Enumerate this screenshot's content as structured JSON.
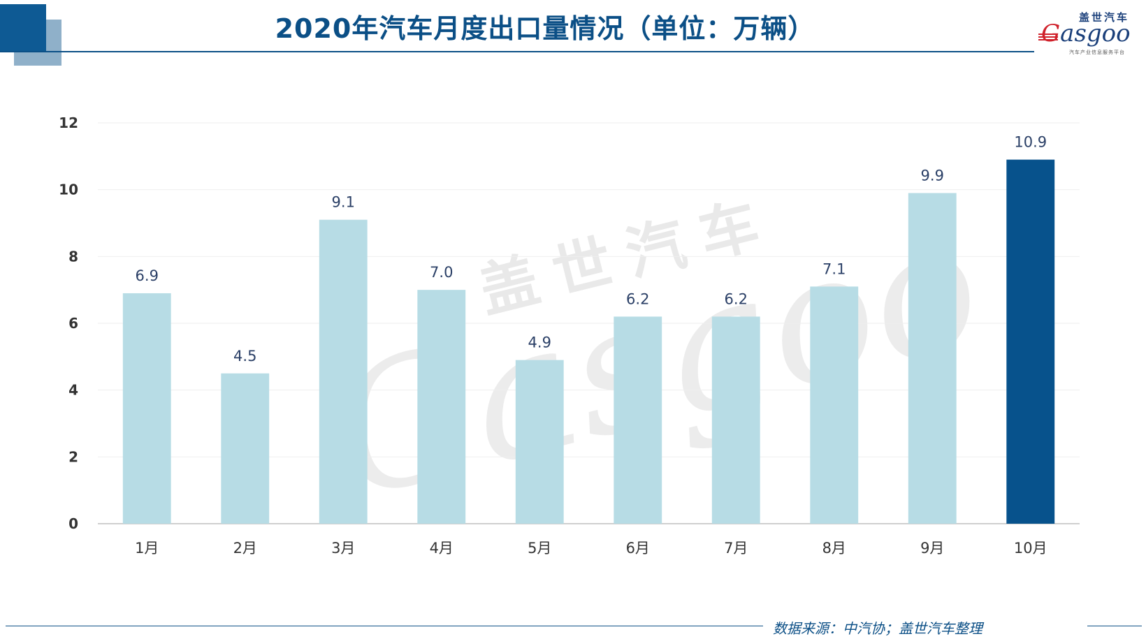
{
  "page": {
    "title": "2020年汽车月度出口量情况（单位：万辆）",
    "source": "数据来源：中汽协；盖世汽车整理",
    "logo": {
      "cn": "盖世汽车",
      "en_g": "G",
      "en_rest": "asgoo",
      "sub": "汽车产业信息服务平台"
    },
    "watermark": {
      "cn": "盖世汽车",
      "en": "Gasgoo"
    }
  },
  "colors": {
    "title": "#0b4f86",
    "bar": "#b7dce5",
    "highlight_bar": "#07528c",
    "axis_text": "#333333",
    "value_label": "#2a3f66",
    "grid": "#eeeeee"
  },
  "chart_data": {
    "type": "bar",
    "categories": [
      "1月",
      "2月",
      "3月",
      "4月",
      "5月",
      "6月",
      "7月",
      "8月",
      "9月",
      "10月"
    ],
    "values": [
      6.9,
      4.5,
      9.1,
      7.0,
      4.9,
      6.2,
      6.2,
      7.1,
      9.9,
      10.9
    ],
    "value_labels": [
      "6.9",
      "4.5",
      "9.1",
      "7.0",
      "4.9",
      "6.2",
      "6.2",
      "7.1",
      "9.9",
      "10.9"
    ],
    "highlight_index": 9,
    "ylim": [
      0,
      12
    ],
    "yticks": [
      0,
      2,
      4,
      6,
      8,
      10,
      12
    ],
    "grid": true,
    "legend": "none"
  }
}
